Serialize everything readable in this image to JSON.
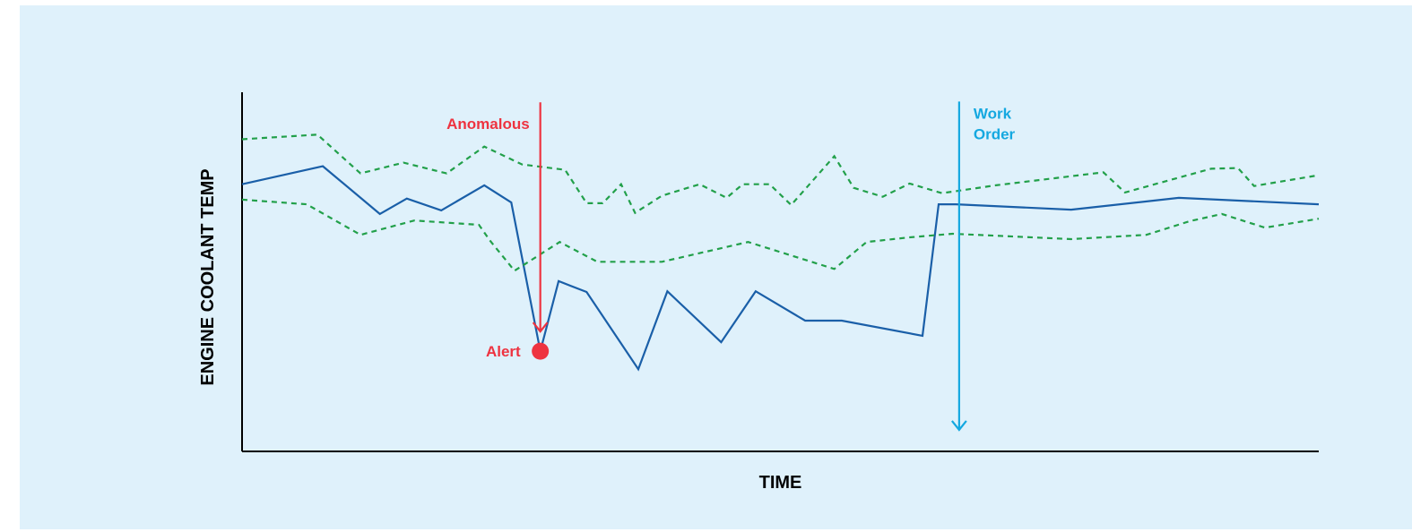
{
  "colors": {
    "background": "#dff1fb",
    "axis": "#000000",
    "signal": "#1a5fa8",
    "band": "#22a04a",
    "alert": "#ee3340",
    "work_order": "#14a8e0"
  },
  "chart_data": {
    "type": "line",
    "title": "",
    "xlabel": "TIME",
    "ylabel": "ENGINE COOLANT TEMP",
    "xlim": [
      0,
      100
    ],
    "ylim": [
      0,
      100
    ],
    "grid": false,
    "legend": "none",
    "series": [
      {
        "role": "signal",
        "style": "solid",
        "x": [
          0,
          7.5,
          12.8,
          15.3,
          18.5,
          22.5,
          25,
          27.7,
          29.4,
          32,
          36.8,
          39.5,
          44.5,
          47.7,
          52.3,
          55.7,
          63.2,
          64.7,
          66.3,
          77,
          87,
          100
        ],
        "y": [
          74.4,
          79.4,
          66.1,
          70.4,
          67.1,
          74.1,
          69.3,
          27.9,
          47.4,
          44.4,
          22.9,
          44.6,
          30.4,
          44.6,
          36.4,
          36.4,
          32.2,
          68.8,
          68.8,
          67.3,
          70.6,
          68.8
        ]
      },
      {
        "role": "upper-band",
        "style": "dashed",
        "x": [
          0,
          7,
          11,
          15,
          19,
          22.5,
          26,
          30,
          32,
          33.5,
          35.2,
          36.5,
          39,
          42.5,
          45,
          46.5,
          49,
          51,
          55,
          56.8,
          59.5,
          62,
          65,
          70,
          80,
          82,
          90,
          92.5,
          94,
          100
        ],
        "y": 86.9,
        "y_values": [
          86.9,
          88.2,
          77.4,
          80.4,
          77.4,
          84.9,
          79.9,
          78.4,
          69.1,
          69.1,
          74.4,
          66.4,
          71.2,
          74.4,
          70.6,
          74.4,
          74.4,
          68.6,
          82.2,
          73.4,
          70.9,
          74.6,
          71.9,
          74.1,
          77.7,
          72.1,
          78.7,
          78.9,
          73.9,
          76.9
        ]
      },
      {
        "role": "lower-band",
        "style": "dashed",
        "x": [
          0,
          6,
          11,
          16,
          22,
          23,
          25.3,
          29.5,
          33,
          39,
          47,
          55,
          58,
          62,
          66,
          77,
          84,
          88,
          91,
          95,
          100
        ],
        "y_values": [
          70.1,
          68.8,
          60.3,
          64.3,
          63.1,
          58.8,
          50.3,
          58.3,
          52.8,
          52.8,
          58.3,
          50.8,
          58.3,
          59.6,
          60.6,
          59.1,
          60.3,
          64.1,
          66.1,
          62.3,
          64.8
        ]
      }
    ],
    "annotations": [
      {
        "id": "anomalous",
        "label": "Anomalous",
        "x": 27.7,
        "arrow_from_y": 97.2,
        "arrow_to_y": 33.4,
        "color": "#ee3340"
      },
      {
        "id": "alert",
        "label": "Alert",
        "x": 27.7,
        "y": 27.9,
        "marker": "dot",
        "color": "#ee3340"
      },
      {
        "id": "work-order",
        "label_lines": [
          "Work",
          "Order"
        ],
        "x": 66.6,
        "arrow_from_y": 97.4,
        "arrow_to_y": 6.0,
        "color": "#14a8e0"
      }
    ]
  }
}
